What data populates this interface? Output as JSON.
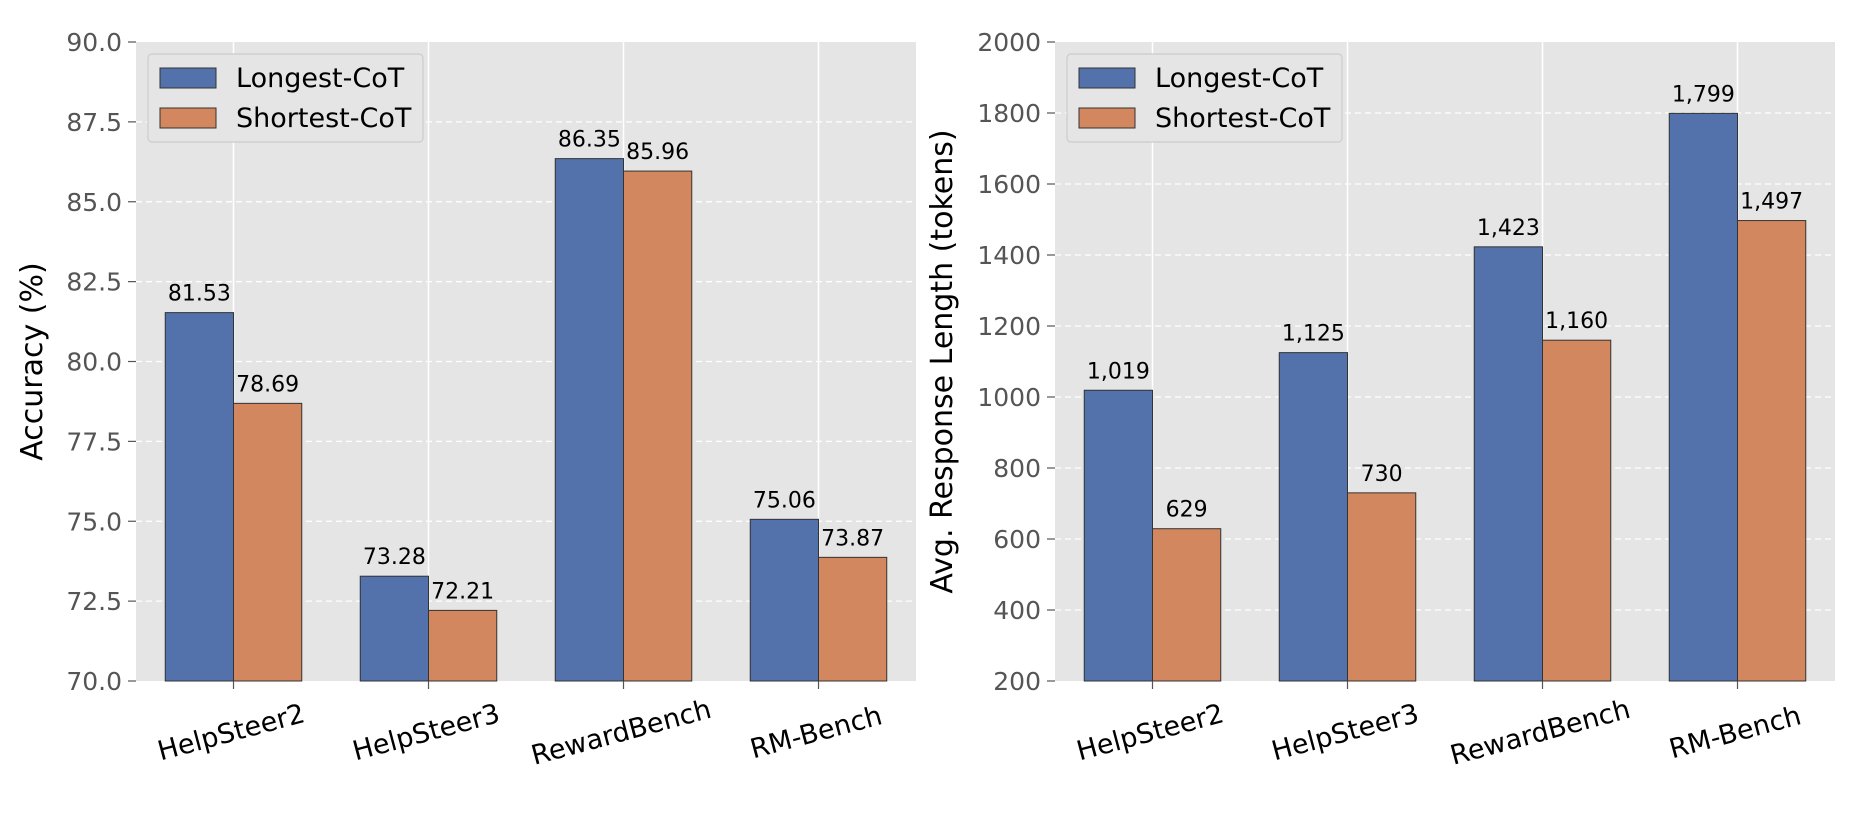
{
  "chart_data": [
    {
      "type": "bar",
      "categories": [
        "HelpSteer2",
        "HelpSteer3",
        "RewardBench",
        "RM-Bench"
      ],
      "series": [
        {
          "name": "Longest-CoT",
          "values": [
            81.53,
            73.28,
            86.35,
            75.06
          ],
          "labels": [
            "81.53",
            "73.28",
            "86.35",
            "75.06"
          ]
        },
        {
          "name": "Shortest-CoT",
          "values": [
            78.69,
            72.21,
            85.96,
            73.87
          ],
          "labels": [
            "78.69",
            "72.21",
            "85.96",
            "73.87"
          ]
        }
      ],
      "ylabel": "Accuracy (%)",
      "ylim": [
        70,
        90
      ],
      "yticks": [
        70.0,
        72.5,
        75.0,
        77.5,
        80.0,
        82.5,
        85.0,
        87.5,
        90.0
      ],
      "ytick_labels": [
        "70.0",
        "72.5",
        "75.0",
        "77.5",
        "80.0",
        "82.5",
        "85.0",
        "87.5",
        "90.0"
      ],
      "legend_position": "top-left",
      "grid": true
    },
    {
      "type": "bar",
      "categories": [
        "HelpSteer2",
        "HelpSteer3",
        "RewardBench",
        "RM-Bench"
      ],
      "series": [
        {
          "name": "Longest-CoT",
          "values": [
            1019,
            1125,
            1423,
            1799
          ],
          "labels": [
            "1,019",
            "1,125",
            "1,423",
            "1,799"
          ]
        },
        {
          "name": "Shortest-CoT",
          "values": [
            629,
            730,
            1160,
            1497
          ],
          "labels": [
            "629",
            "730",
            "1,160",
            "1,497"
          ]
        }
      ],
      "ylabel": "Avg. Response Length (tokens)",
      "ylim": [
        200,
        2000
      ],
      "yticks": [
        200,
        400,
        600,
        800,
        1000,
        1200,
        1400,
        1600,
        1800,
        2000
      ],
      "ytick_labels": [
        "200",
        "400",
        "600",
        "800",
        "1000",
        "1200",
        "1400",
        "1600",
        "1800",
        "2000"
      ],
      "legend_position": "top-left",
      "grid": true
    }
  ],
  "colors": {
    "Longest-CoT": "#5371aa",
    "Shortest-CoT": "#d3875e",
    "plot_background": "#e5e5e5"
  }
}
